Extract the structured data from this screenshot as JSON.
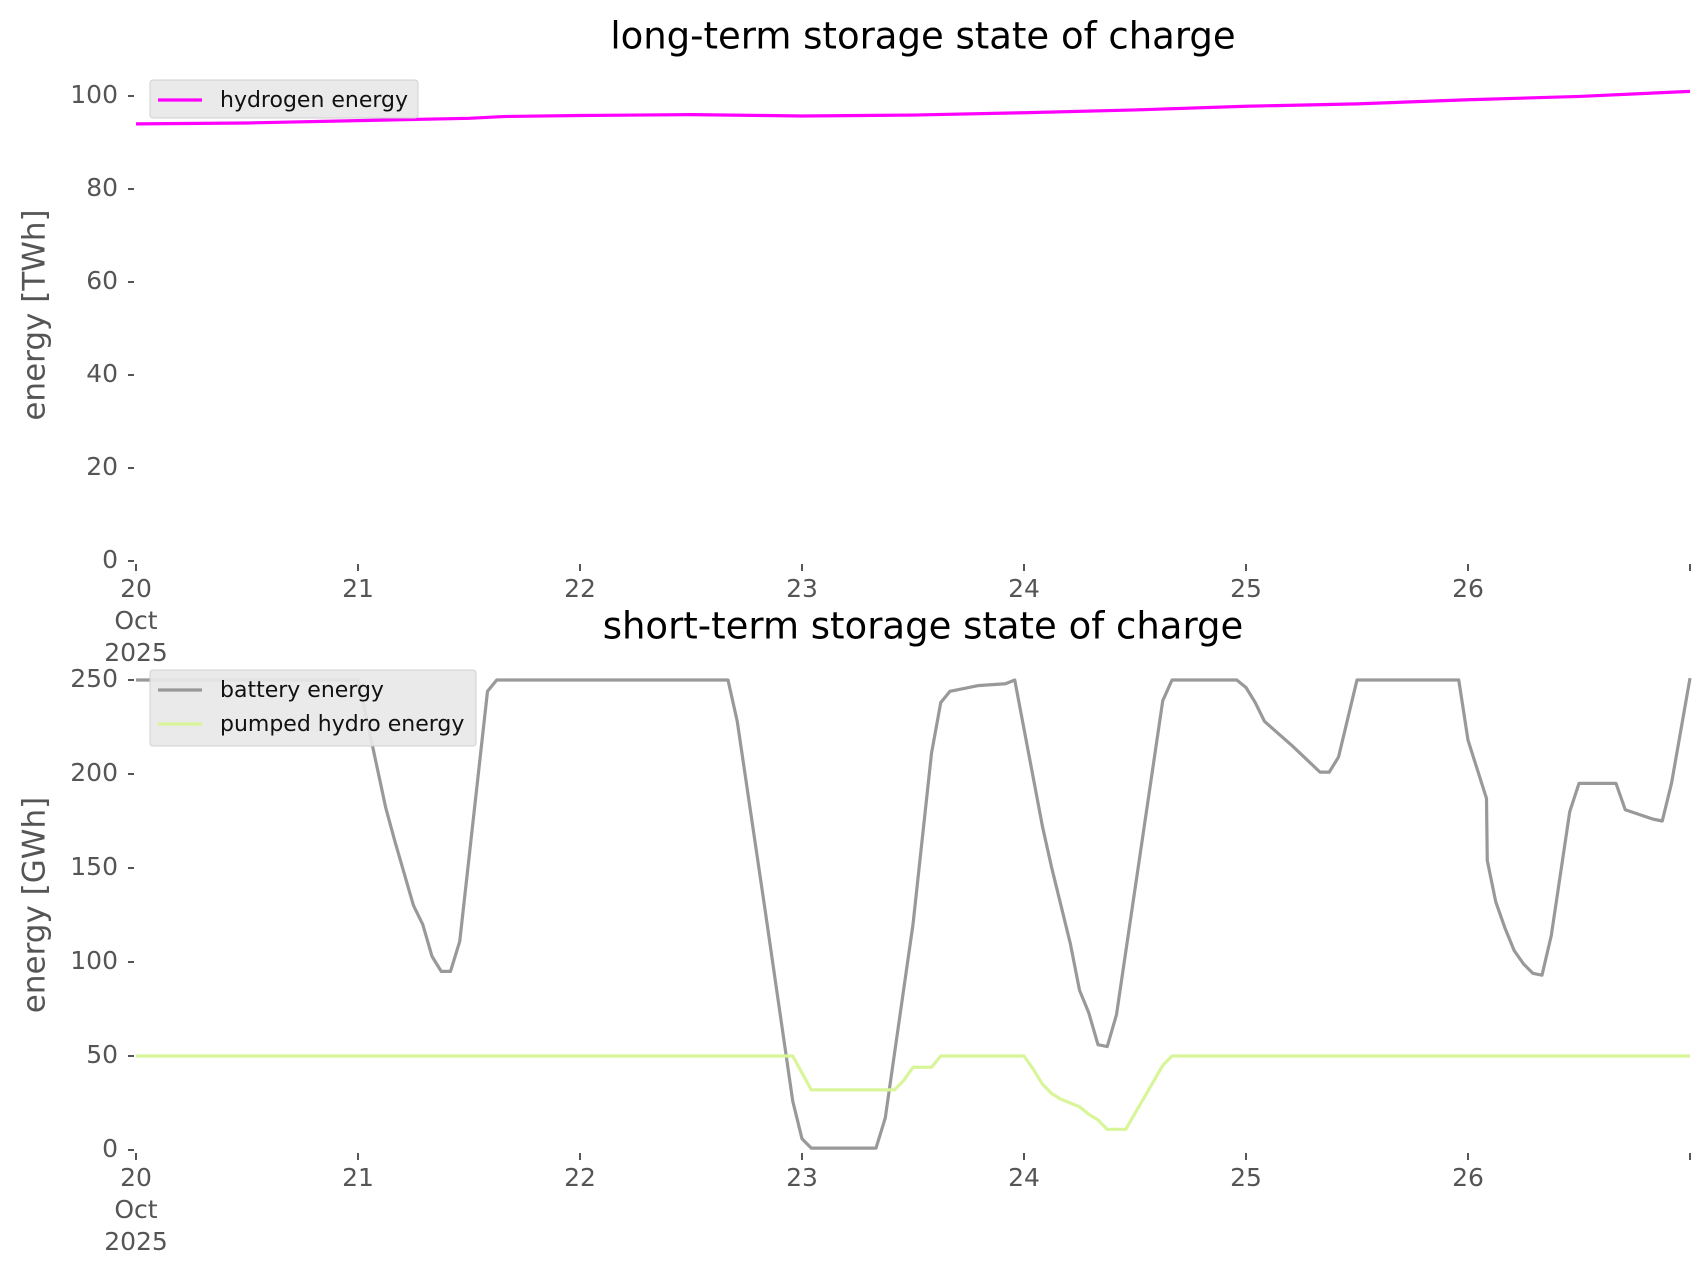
{
  "chart_data": [
    {
      "type": "line",
      "title": "long-term storage state of charge",
      "xlabel": "",
      "ylabel": "energy [TWh]",
      "ylim": [
        0,
        100
      ],
      "y_ticks": [
        "0",
        "20",
        "40",
        "60",
        "80",
        "100"
      ],
      "x_ticks": [
        [
          "20",
          "Oct",
          "2025"
        ],
        [
          "21"
        ],
        [
          "22"
        ],
        [
          "23"
        ],
        [
          "24"
        ],
        [
          "25"
        ],
        [
          "26"
        ],
        []
      ],
      "xlim": [
        "2025-10-20",
        "2025-10-27"
      ],
      "grid": false,
      "legend": "top-left",
      "series": [
        {
          "name": "hydrogen energy",
          "color": "#ff00ff",
          "points": [
            [
              "2025-10-20T00:00",
              94.0
            ],
            [
              "2025-10-20T12:00",
              94.2
            ],
            [
              "2025-10-21T00:00",
              94.7
            ],
            [
              "2025-10-21T12:00",
              95.2
            ],
            [
              "2025-10-21T16:00",
              95.6
            ],
            [
              "2025-10-22T00:00",
              95.8
            ],
            [
              "2025-10-22T12:00",
              96.0
            ],
            [
              "2025-10-22T20:00",
              95.8
            ],
            [
              "2025-10-23T00:00",
              95.7
            ],
            [
              "2025-10-23T12:00",
              95.9
            ],
            [
              "2025-10-24T00:00",
              96.4
            ],
            [
              "2025-10-24T12:00",
              97.0
            ],
            [
              "2025-10-25T00:00",
              97.8
            ],
            [
              "2025-10-25T12:00",
              98.3
            ],
            [
              "2025-10-26T00:00",
              99.2
            ],
            [
              "2025-10-26T12:00",
              99.9
            ],
            [
              "2025-10-27T00:00",
              101.0
            ]
          ]
        }
      ]
    },
    {
      "type": "line",
      "title": "short-term storage state of charge",
      "xlabel": "",
      "ylabel": "energy [GWh]",
      "ylim": [
        0,
        250
      ],
      "y_ticks": [
        "0",
        "50",
        "100",
        "150",
        "200",
        "250"
      ],
      "x_ticks": [
        [
          "20",
          "Oct",
          "2025"
        ],
        [
          "21"
        ],
        [
          "22"
        ],
        [
          "23"
        ],
        [
          "24"
        ],
        [
          "25"
        ],
        [
          "26"
        ],
        []
      ],
      "xlim": [
        "2025-10-20",
        "2025-10-27"
      ],
      "grid": false,
      "legend": "top-left",
      "series": [
        {
          "name": "battery energy",
          "color": "#999999",
          "points": [
            [
              "2025-10-20T00:00",
              250
            ],
            [
              "2025-10-21T00:00",
              250
            ],
            [
              "2025-10-21T01:00",
              228
            ],
            [
              "2025-10-21T02:00",
              205
            ],
            [
              "2025-10-21T03:00",
              182
            ],
            [
              "2025-10-21T04:00",
              164
            ],
            [
              "2025-10-21T06:00",
              130
            ],
            [
              "2025-10-21T07:00",
              120
            ],
            [
              "2025-10-21T08:00",
              103
            ],
            [
              "2025-10-21T09:00",
              95
            ],
            [
              "2025-10-21T10:00",
              95
            ],
            [
              "2025-10-21T11:00",
              111
            ],
            [
              "2025-10-21T14:00",
              244
            ],
            [
              "2025-10-21T15:00",
              250
            ],
            [
              "2025-10-22T16:00",
              250
            ],
            [
              "2025-10-22T17:00",
              228
            ],
            [
              "2025-10-22T20:00",
              128
            ],
            [
              "2025-10-22T23:00",
              26
            ],
            [
              "2025-10-23T00:00",
              6
            ],
            [
              "2025-10-23T01:00",
              1
            ],
            [
              "2025-10-23T08:00",
              1
            ],
            [
              "2025-10-23T09:00",
              17
            ],
            [
              "2025-10-23T12:00",
              120
            ],
            [
              "2025-10-23T14:00",
              211
            ],
            [
              "2025-10-23T15:00",
              238
            ],
            [
              "2025-10-23T16:00",
              244
            ],
            [
              "2025-10-23T19:00",
              247
            ],
            [
              "2025-10-23T22:00",
              248
            ],
            [
              "2025-10-23T23:00",
              250
            ],
            [
              "2025-10-24T02:00",
              172
            ],
            [
              "2025-10-24T03:00",
              150
            ],
            [
              "2025-10-24T05:00",
              110
            ],
            [
              "2025-10-24T06:00",
              85
            ],
            [
              "2025-10-24T07:00",
              73
            ],
            [
              "2025-10-24T08:00",
              56
            ],
            [
              "2025-10-24T09:00",
              55
            ],
            [
              "2025-10-24T10:00",
              72
            ],
            [
              "2025-10-24T15:00",
              239
            ],
            [
              "2025-10-24T16:00",
              250
            ],
            [
              "2025-10-24T23:00",
              250
            ],
            [
              "2025-10-25T00:00",
              246
            ],
            [
              "2025-10-25T01:00",
              238
            ],
            [
              "2025-10-25T02:00",
              228
            ],
            [
              "2025-10-25T05:00",
              215
            ],
            [
              "2025-10-25T08:00",
              201
            ],
            [
              "2025-10-25T09:00",
              201
            ],
            [
              "2025-10-25T10:00",
              209
            ],
            [
              "2025-10-25T12:00",
              250
            ],
            [
              "2025-10-25T23:00",
              250
            ],
            [
              "2025-10-26T00:00",
              218
            ],
            [
              "2025-10-26T02:00",
              187
            ],
            [
              "2025-10-26T02:05",
              154
            ],
            [
              "2025-10-26T03:00",
              132
            ],
            [
              "2025-10-26T04:00",
              118
            ],
            [
              "2025-10-26T05:00",
              106
            ],
            [
              "2025-10-26T06:00",
              99
            ],
            [
              "2025-10-26T07:00",
              94
            ],
            [
              "2025-10-26T08:00",
              93
            ],
            [
              "2025-10-26T09:00",
              114
            ],
            [
              "2025-10-26T11:00",
              180
            ],
            [
              "2025-10-26T12:00",
              195
            ],
            [
              "2025-10-26T16:00",
              195
            ],
            [
              "2025-10-26T17:00",
              181
            ],
            [
              "2025-10-26T20:00",
              176
            ],
            [
              "2025-10-26T21:00",
              175
            ],
            [
              "2025-10-26T22:00",
              195
            ],
            [
              "2025-10-27T00:00",
              251
            ]
          ]
        },
        {
          "name": "pumped hydro energy",
          "color": "#d9f599",
          "points": [
            [
              "2025-10-20T00:00",
              50
            ],
            [
              "2025-10-22T23:00",
              50
            ],
            [
              "2025-10-23T01:00",
              32
            ],
            [
              "2025-10-23T10:00",
              32
            ],
            [
              "2025-10-23T11:00",
              37
            ],
            [
              "2025-10-23T12:00",
              44
            ],
            [
              "2025-10-23T14:00",
              44
            ],
            [
              "2025-10-23T15:00",
              50
            ],
            [
              "2025-10-24T00:00",
              50
            ],
            [
              "2025-10-24T01:00",
              43
            ],
            [
              "2025-10-24T02:00",
              35
            ],
            [
              "2025-10-24T03:00",
              30
            ],
            [
              "2025-10-24T04:00",
              27
            ],
            [
              "2025-10-24T05:00",
              25
            ],
            [
              "2025-10-24T06:00",
              23
            ],
            [
              "2025-10-24T07:00",
              19
            ],
            [
              "2025-10-24T08:00",
              16
            ],
            [
              "2025-10-24T09:00",
              11
            ],
            [
              "2025-10-24T11:00",
              11
            ],
            [
              "2025-10-24T15:00",
              45
            ],
            [
              "2025-10-24T16:00",
              50
            ],
            [
              "2025-10-27T00:00",
              50
            ]
          ]
        }
      ]
    }
  ]
}
